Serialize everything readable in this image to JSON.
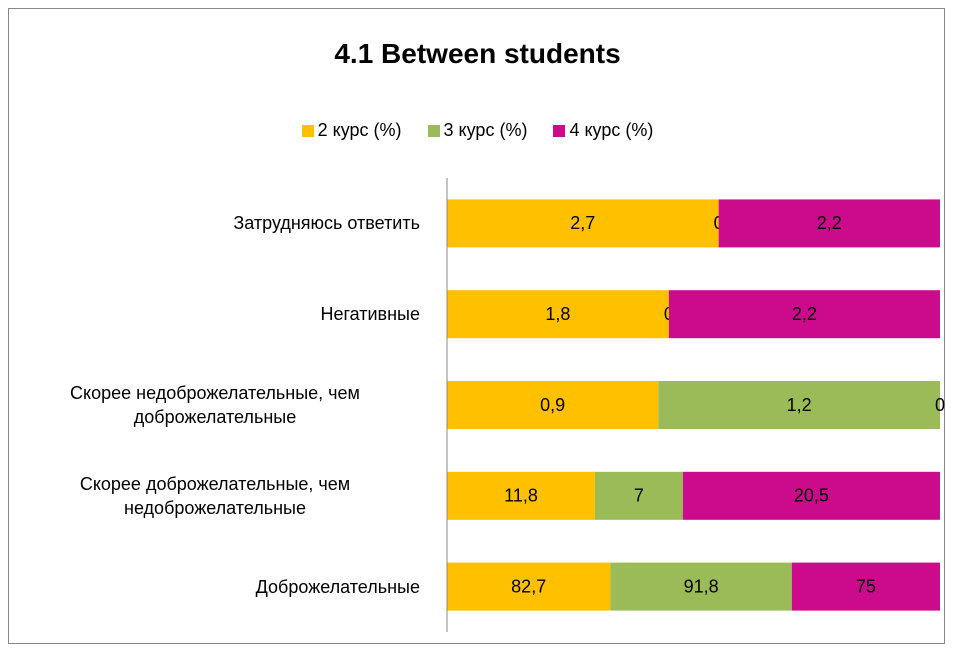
{
  "chart_data": {
    "type": "bar",
    "orientation": "horizontal",
    "stacking": "percent",
    "title": "4.1 Between students",
    "categories": [
      "Затрудняюсь ответить",
      "Негативные",
      "Скорее недоброжелательные, чем доброжелательные",
      "Скорее доброжелательные, чем недоброжелательные",
      "Доброжелательные"
    ],
    "series": [
      {
        "name": "2 курс (%)",
        "color": "#FFC000",
        "values": [
          2.7,
          1.8,
          0.9,
          11.8,
          82.7
        ],
        "value_labels": [
          "2,7",
          "1,8",
          "0,9",
          "11,8",
          "82,7"
        ]
      },
      {
        "name": "3 курс (%)",
        "color": "#9BBB59",
        "values": [
          0,
          0,
          1.2,
          7,
          91.8
        ],
        "value_labels": [
          "0",
          "0",
          "1,2",
          "7",
          "91,8"
        ]
      },
      {
        "name": "4 курс (%)",
        "color": "#CC0A8C",
        "values": [
          2.2,
          2.2,
          0,
          20.5,
          75
        ],
        "value_labels": [
          "2,2",
          "2,2",
          "0",
          "20,5",
          "75"
        ]
      }
    ],
    "legend": "top"
  }
}
